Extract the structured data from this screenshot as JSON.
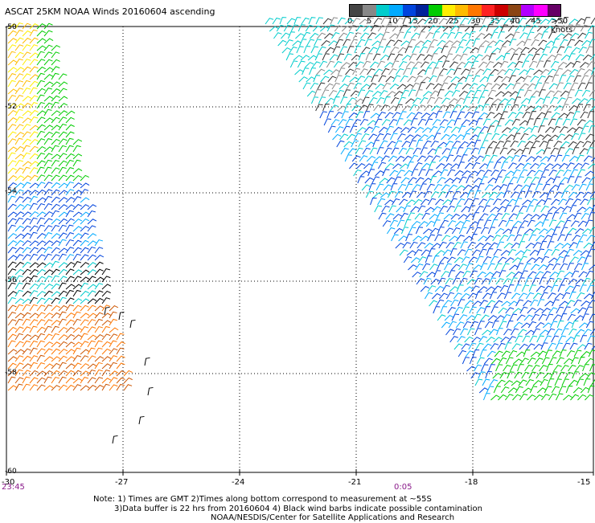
{
  "title": "ASCAT 25KM NOAA Winds 20160604 ascending",
  "legend": {
    "colors": [
      "#444444",
      "#888888",
      "#00cccc",
      "#00aaff",
      "#0044dd",
      "#002299",
      "#00cc00",
      "#ffee00",
      "#ffbb00",
      "#ff7700",
      "#ff2222",
      "#cc0000",
      "#8b4513",
      "#b200ff",
      "#ff00ff",
      "#660066"
    ],
    "labels": [
      "0",
      "5",
      "10",
      "15",
      "20",
      "25",
      "30",
      "35",
      "40",
      "45",
      ">50 knots"
    ]
  },
  "y_axis": {
    "labels": [
      "-50",
      "-52",
      "-54",
      "-56",
      "-58",
      "-60"
    ]
  },
  "x_axis": {
    "labels": [
      "-30",
      "-27",
      "-24",
      "-21",
      "-18",
      "-15"
    ]
  },
  "times": {
    "left": "23:45",
    "mid": "0:05"
  },
  "notes": {
    "line1": "Note: 1) Times are GMT 2)Times along bottom correspond to measurement at ~55S",
    "line2": "3)Data buffer is 22 hrs from 20160604 4) Black wind barbs indicate possible contamination",
    "line3": "NOAA/NESDIS/Center for Satellite Applications and Research"
  },
  "map_extent": {
    "lon": [
      -30,
      -15
    ],
    "lat": [
      -60,
      -50
    ]
  }
}
